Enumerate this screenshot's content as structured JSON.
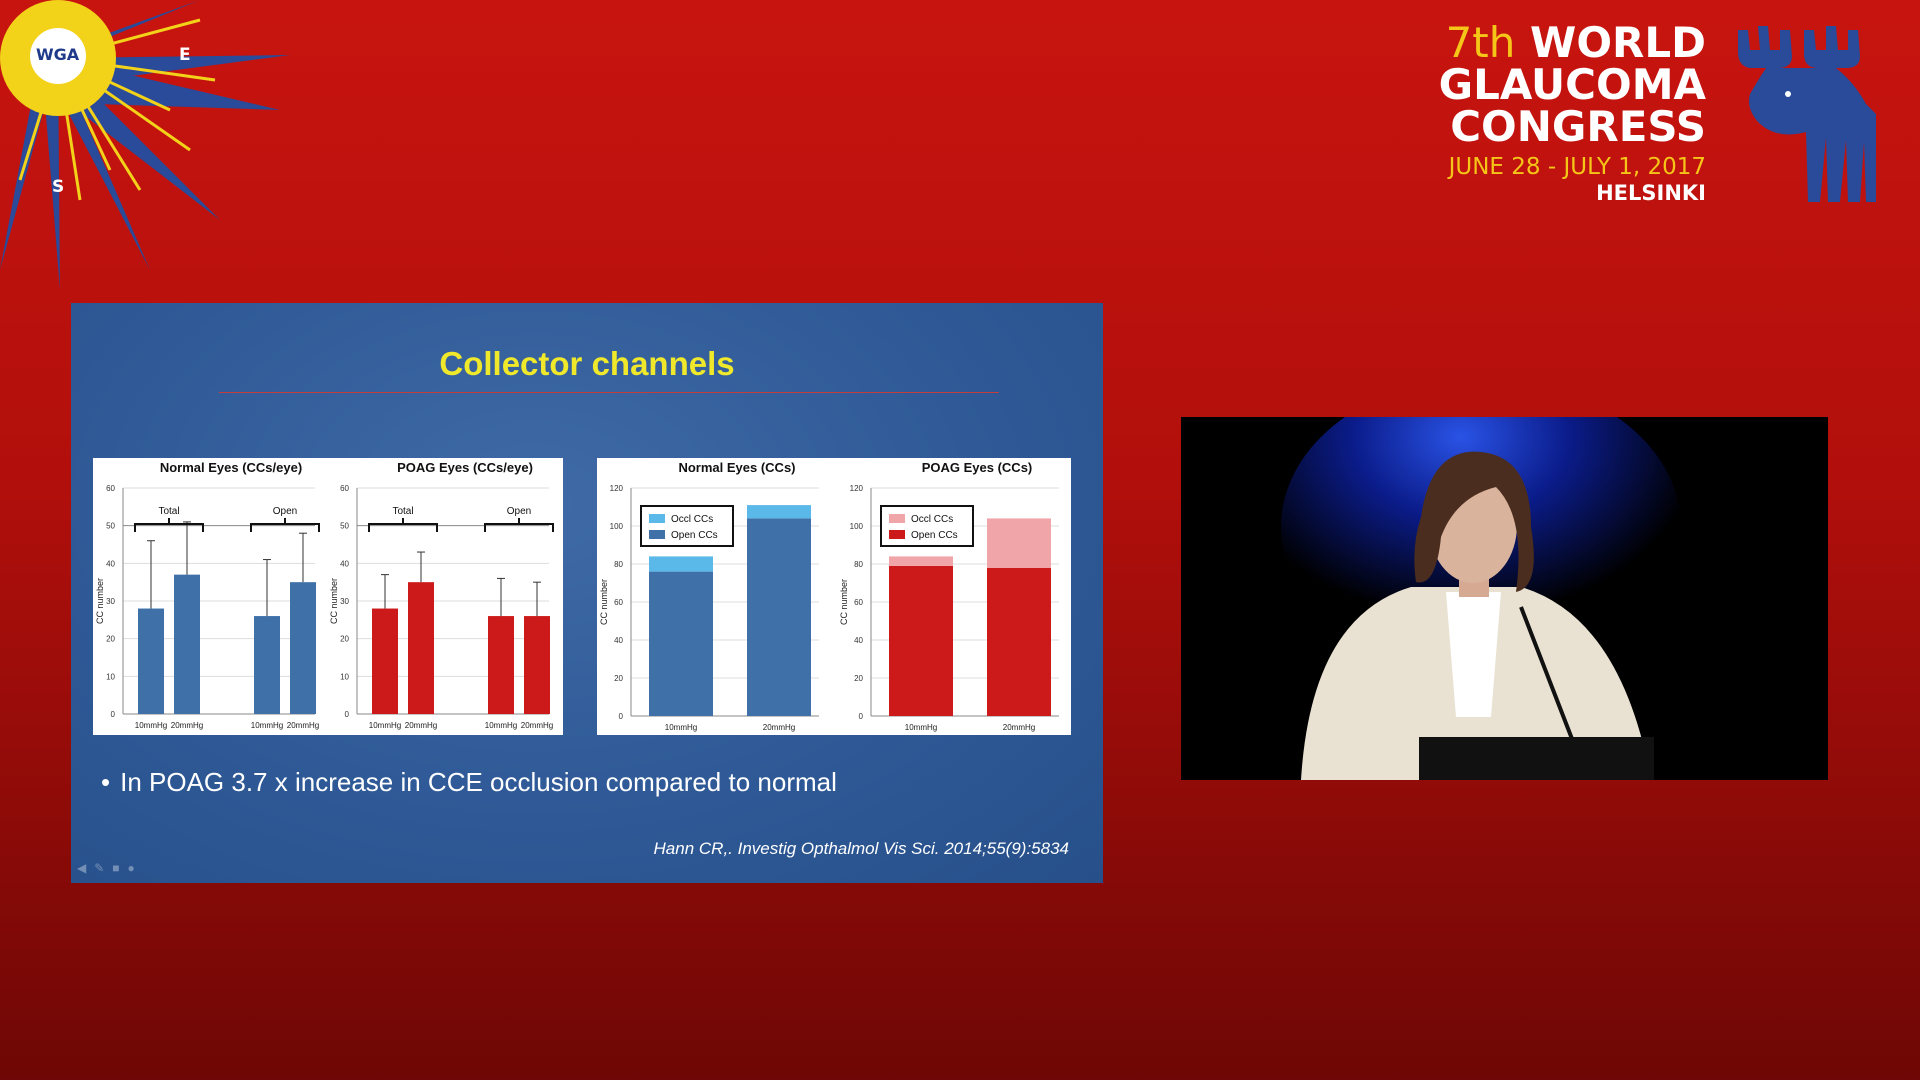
{
  "logo": {
    "text": "WGA",
    "east": "E",
    "south": "S"
  },
  "congress": {
    "edition": "7th",
    "line1": "WORLD",
    "line2": "GLAUCOMA",
    "line3": "CONGRESS",
    "dates": "JUNE 28 - JULY 1, 2017",
    "city": "HELSINKI"
  },
  "slide": {
    "title": "Collector channels",
    "bullet": "In POAG 3.7 x increase in CCE occlusion compared to normal",
    "citation": "Hann CR,. Investig Opthalmol Vis Sci. 2014;55(9):5834"
  },
  "colors": {
    "normal": "#3f70a8",
    "poag": "#cc1a1a",
    "occl_blue": "#5ab9e8",
    "occl_red": "#f0a5a8"
  },
  "chart_data": [
    {
      "type": "bar",
      "title": "Normal Eyes (CCs/eye)",
      "ylabel": "CC number",
      "categories": [
        "10mmHg",
        "20mmHg",
        "10mmHg",
        "20mmHg"
      ],
      "groups": [
        "Total",
        "Open"
      ],
      "values": [
        28,
        37,
        26,
        35
      ],
      "errors": [
        18,
        14,
        15,
        13
      ],
      "ylim": [
        0,
        60
      ],
      "yticks": [
        0,
        10,
        20,
        30,
        40,
        50,
        60
      ]
    },
    {
      "type": "bar",
      "title": "POAG Eyes (CCs/eye)",
      "ylabel": "CC number",
      "categories": [
        "10mmHg",
        "20mmHg",
        "10mmHg",
        "20mmHg"
      ],
      "groups": [
        "Total",
        "Open"
      ],
      "values": [
        28,
        35,
        26,
        26
      ],
      "errors": [
        9,
        8,
        10,
        9
      ],
      "ylim": [
        0,
        60
      ],
      "yticks": [
        0,
        10,
        20,
        30,
        40,
        50,
        60
      ]
    },
    {
      "type": "bar",
      "stacked": true,
      "title": "Normal Eyes (CCs)",
      "ylabel": "CC number",
      "categories": [
        "10mmHg",
        "20mmHg"
      ],
      "series": [
        {
          "name": "Open CCs",
          "values": [
            76,
            104
          ]
        },
        {
          "name": "Occl CCs",
          "values": [
            8,
            7
          ]
        }
      ],
      "legend_order": [
        "Occl CCs",
        "Open CCs"
      ],
      "ylim": [
        0,
        120
      ],
      "yticks": [
        0,
        20,
        40,
        60,
        80,
        100,
        120
      ]
    },
    {
      "type": "bar",
      "stacked": true,
      "title": "POAG Eyes (CCs)",
      "ylabel": "CC number",
      "categories": [
        "10mmHg",
        "20mmHg"
      ],
      "series": [
        {
          "name": "Open CCs",
          "values": [
            79,
            78
          ]
        },
        {
          "name": "Occl CCs",
          "values": [
            5,
            26
          ]
        }
      ],
      "legend_order": [
        "Occl CCs",
        "Open CCs"
      ],
      "ylim": [
        0,
        120
      ],
      "yticks": [
        0,
        20,
        40,
        60,
        80,
        100,
        120
      ]
    }
  ]
}
